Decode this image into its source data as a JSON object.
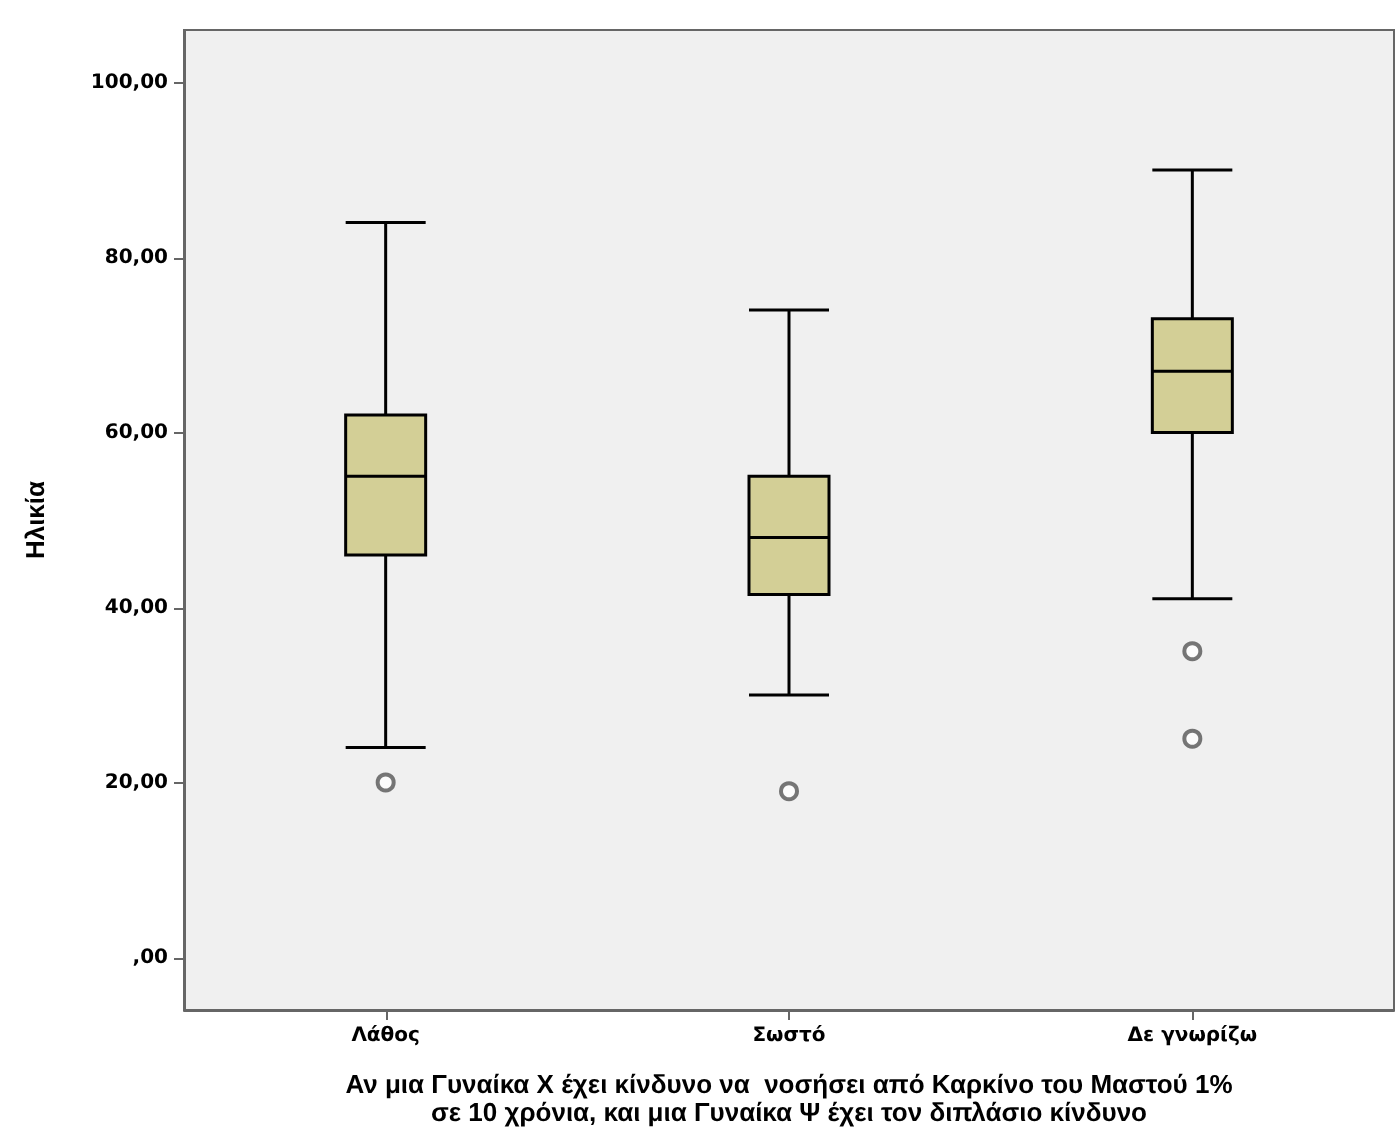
{
  "chart_data": {
    "type": "box",
    "categories": [
      "Λάθος",
      "Σωστό",
      "Δε γνωρίζω"
    ],
    "boxes": [
      {
        "low": 24,
        "q1": 46,
        "median": 55,
        "q3": 62,
        "high": 84,
        "outliers": [
          20
        ]
      },
      {
        "low": 30,
        "q1": 41.5,
        "median": 48,
        "q3": 55,
        "high": 74,
        "outliers": [
          19
        ]
      },
      {
        "low": 41,
        "q1": 60,
        "median": 67,
        "q3": 73,
        "high": 90,
        "outliers": [
          35,
          25
        ]
      }
    ],
    "color": "#d3cf96",
    "xlabel": "Αν μια Γυναίκα Χ έχει κίνδυνο να  νοσήσει από Καρκίνο του Μαστού 1%\nσε 10 χρόνια, και μια Γυναίκα Ψ έχει τον διπλάσιο κίνδυνο",
    "ylabel": "Ηλικία",
    "ylim": [
      -6,
      106
    ],
    "yticks": [
      {
        "value": 0,
        "label": ",00"
      },
      {
        "value": 20,
        "label": "20,00"
      },
      {
        "value": 40,
        "label": "40,00"
      },
      {
        "value": 60,
        "label": "60,00"
      },
      {
        "value": 80,
        "label": "80,00"
      },
      {
        "value": 100,
        "label": "100,00"
      }
    ],
    "grid": false,
    "marker": "circle"
  }
}
